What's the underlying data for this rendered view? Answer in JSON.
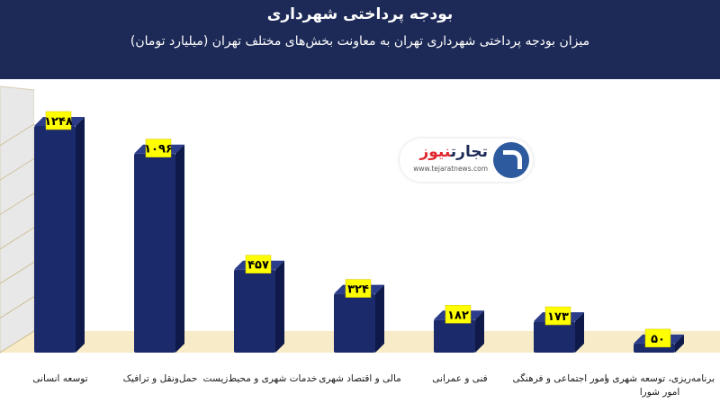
{
  "chart_data": {
    "type": "bar",
    "title": "بودجه پرداختی شهرداری",
    "subtitle": "میزان بودجه پرداختی شهرداری تهران به معاونت بخش‌های مختلف تهران (میلیارد تومان)",
    "categories": [
      "توسعه انسانی",
      "حمل‌ونقل و ترافیک",
      "خدمات شهری و محیط‌زیست",
      "مالی و اقتصاد شهری",
      "فنی و عمرانی",
      "امور اجتماعی و فرهنگی",
      "برنامه‌ریزی، توسعه شهری و امور شورا"
    ],
    "values": [
      1248,
      1096,
      457,
      324,
      182,
      173,
      50
    ],
    "value_labels": [
      "۱۲۴۸",
      "۱۰۹۶",
      "۴۵۷",
      "۳۲۴",
      "۱۸۲",
      "۱۷۳",
      "۵۰"
    ],
    "ylim": [
      0,
      1400
    ],
    "grid": true,
    "colors": {
      "header": "#1d2a57",
      "bar_front": "#1b2a6b",
      "bar_side": "#0f1a4a",
      "bar_top": "#2a3c8a",
      "label_bg": "#ffff00",
      "floor": "#f7ecc7",
      "wall": "#e8e8e8"
    }
  },
  "logo": {
    "name_main": "تجارت",
    "name_accent": "نیوز",
    "url": "www.tejaratnews.com",
    "icon": "tejaratnews-logo-icon"
  }
}
